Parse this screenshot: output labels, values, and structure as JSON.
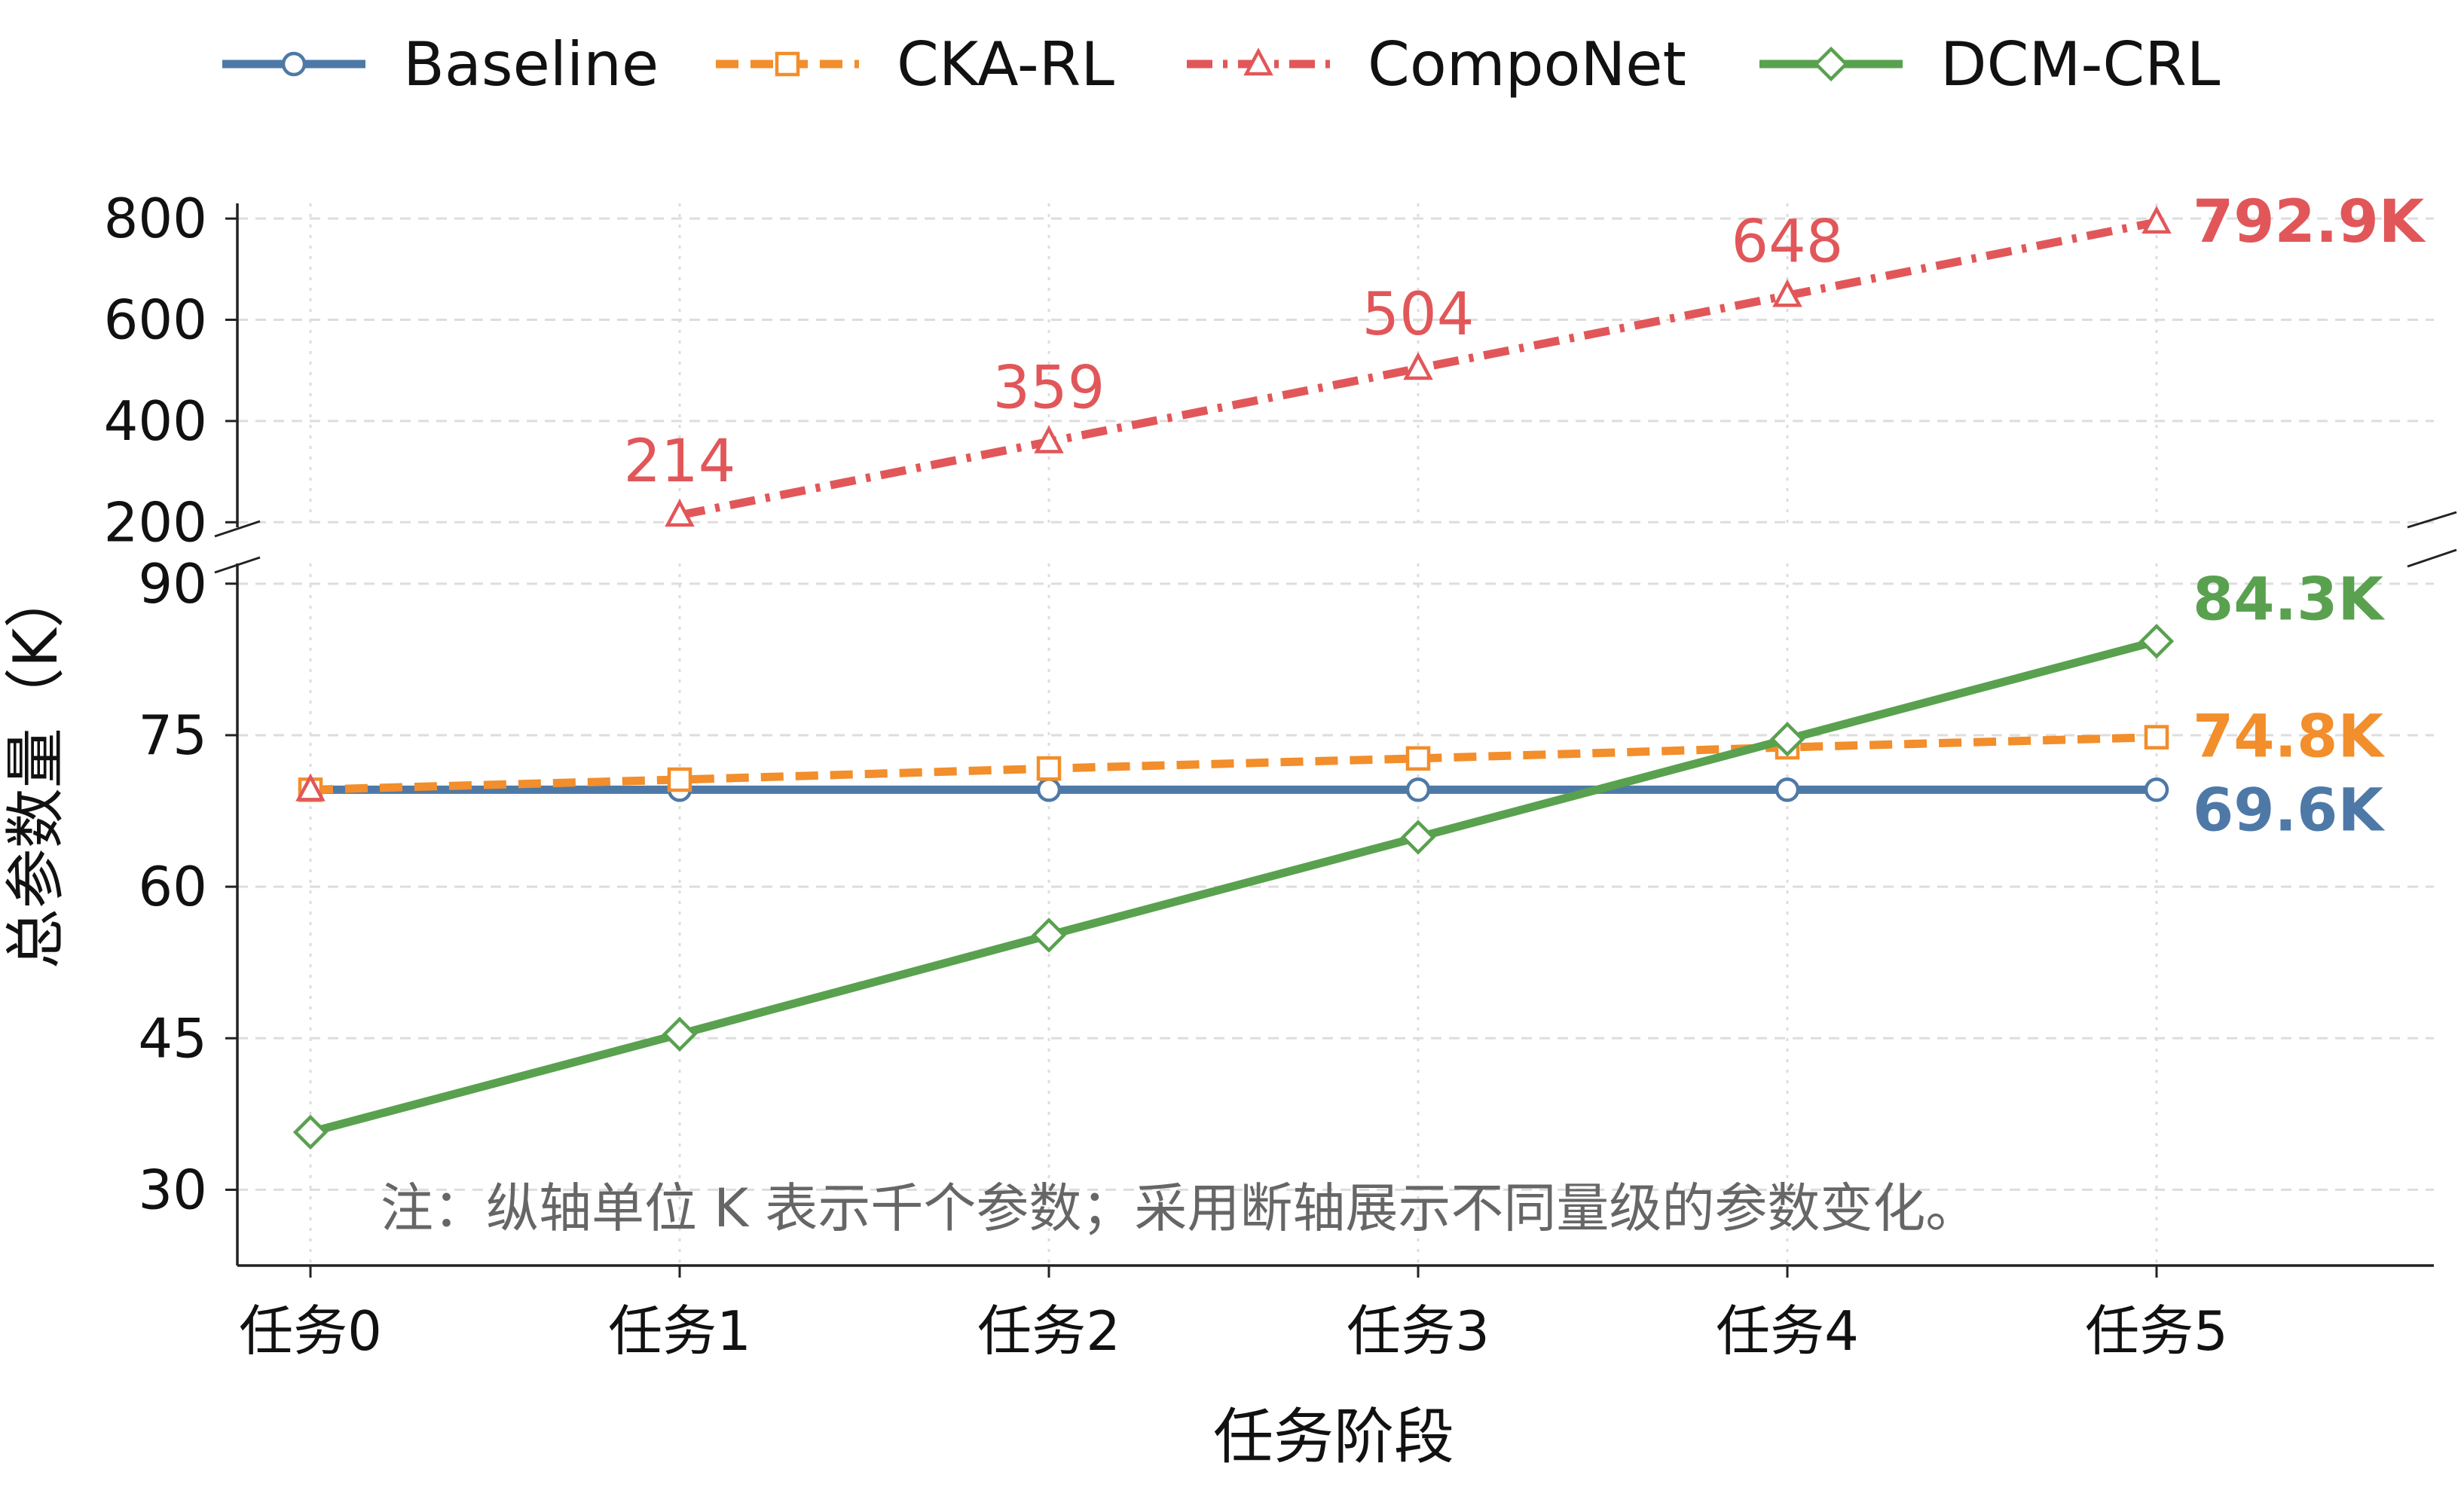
{
  "colors": {
    "baseline": "#4e79a7",
    "cka_rl": "#f28e2b",
    "componet": "#e15759",
    "dcm_crl": "#59a14f",
    "grid": "#dddddd",
    "axis": "#222222",
    "note": "#666666"
  },
  "chart_data": {
    "type": "line",
    "broken_axis": true,
    "title": "",
    "xlabel": "任务阶段",
    "ylabel": "总参数量（K）",
    "categories": [
      "任务0",
      "任务1",
      "任务2",
      "任务3",
      "任务4",
      "任务5"
    ],
    "upper_axis": {
      "ylim": [
        190,
        830
      ],
      "ticks": [
        "200",
        "400",
        "600",
        "800"
      ]
    },
    "lower_axis": {
      "ylim": [
        22.5,
        92
      ],
      "ticks": [
        "30",
        "45",
        "60",
        "75",
        "90"
      ]
    },
    "grid": true,
    "legend_position": "top",
    "series": [
      {
        "key": "baseline",
        "name": "Baseline",
        "marker": "circle",
        "dash": "solid",
        "values": [
          69.6,
          69.6,
          69.6,
          69.6,
          69.6,
          69.6
        ],
        "end_label": "69.6K"
      },
      {
        "key": "cka_rl",
        "name": "CKA-RL",
        "marker": "square",
        "dash": "dashed",
        "values": [
          69.6,
          70.6,
          71.7,
          72.7,
          73.8,
          74.8
        ],
        "end_label": "74.8K"
      },
      {
        "key": "componet",
        "name": "CompoNet",
        "marker": "triangle",
        "dash": "dashdot",
        "values": [
          69.6,
          214,
          359,
          504,
          648,
          792.9
        ],
        "point_labels": [
          "",
          "214",
          "359",
          "504",
          "648",
          ""
        ],
        "end_label": "792.9K"
      },
      {
        "key": "dcm_crl",
        "name": "DCM-CRL",
        "marker": "diamond",
        "dash": "solid",
        "values": [
          35.7,
          45.4,
          55.2,
          64.9,
          74.6,
          84.3
        ],
        "end_label": "84.3K"
      }
    ],
    "annotation": "注：纵轴单位 K 表示千个参数；采用断轴展示不同量级的参数变化。"
  }
}
